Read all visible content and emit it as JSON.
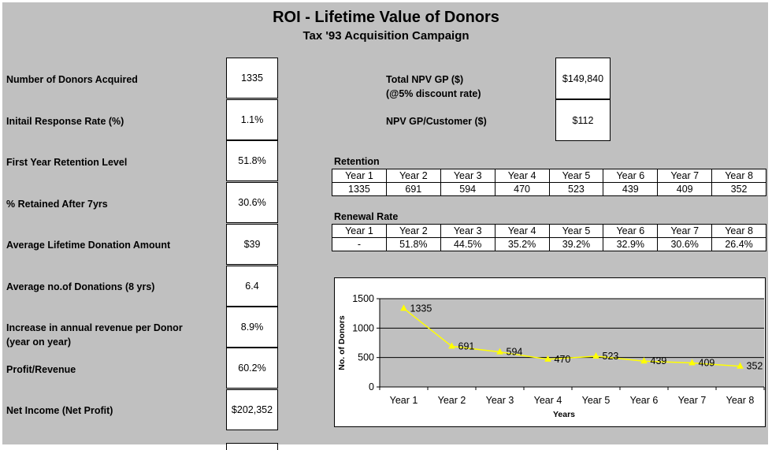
{
  "title": "ROI - Lifetime Value of Donors",
  "subtitle": "Tax '93 Acquisition Campaign",
  "metrics": [
    {
      "label": "Number of Donors Acquired",
      "value": "1335"
    },
    {
      "label": "Initail Response Rate (%)",
      "value": "1.1%"
    },
    {
      "label": "First Year Retention Level",
      "value": "51.8%"
    },
    {
      "label": "% Retained After 7yrs",
      "value": "30.6%"
    },
    {
      "label": "Average Lifetime Donation Amount",
      "value": "$39"
    },
    {
      "label": "Average no.of Donations (8 yrs)",
      "value": "6.4"
    },
    {
      "label": "Increase in annual revenue per Donor",
      "label2": "(year on year)",
      "value": "8.9%"
    },
    {
      "label": "Profit/Revenue",
      "value": "60.2%"
    },
    {
      "label": "Net Income (Net Profit)",
      "value": "$202,352"
    }
  ],
  "npv": {
    "total_label": "Total NPV GP ($)",
    "total_note": "(@5% discount rate)",
    "total_value": "$149,840",
    "per_customer_label": "NPV GP/Customer ($)",
    "per_customer_value": "$112"
  },
  "retention": {
    "title": "Retention",
    "years": [
      "Year 1",
      "Year 2",
      "Year 3",
      "Year 4",
      "Year 5",
      "Year 6",
      "Year 7",
      "Year 8"
    ],
    "values": [
      "1335",
      "691",
      "594",
      "470",
      "523",
      "439",
      "409",
      "352"
    ]
  },
  "renewal": {
    "title": "Renewal Rate",
    "years": [
      "Year 1",
      "Year 2",
      "Year 3",
      "Year 4",
      "Year 5",
      "Year 6",
      "Year 7",
      "Year 8"
    ],
    "values": [
      "-",
      "51.8%",
      "44.5%",
      "35.2%",
      "39.2%",
      "32.9%",
      "30.6%",
      "26.4%"
    ]
  },
  "chart_data": {
    "type": "line",
    "categories": [
      "Year 1",
      "Year 2",
      "Year 3",
      "Year 4",
      "Year 5",
      "Year 6",
      "Year 7",
      "Year 8"
    ],
    "series": [
      {
        "values": [
          1335,
          691,
          594,
          470,
          523,
          439,
          409,
          352
        ],
        "color": "#ffff00"
      }
    ],
    "xlabel": "Years",
    "ylabel": "No. of Donors",
    "ylim": [
      0,
      1500
    ],
    "yticks": [
      0,
      500,
      1000,
      1500
    ],
    "grid": true,
    "plot_background": "#c0c0c0"
  }
}
